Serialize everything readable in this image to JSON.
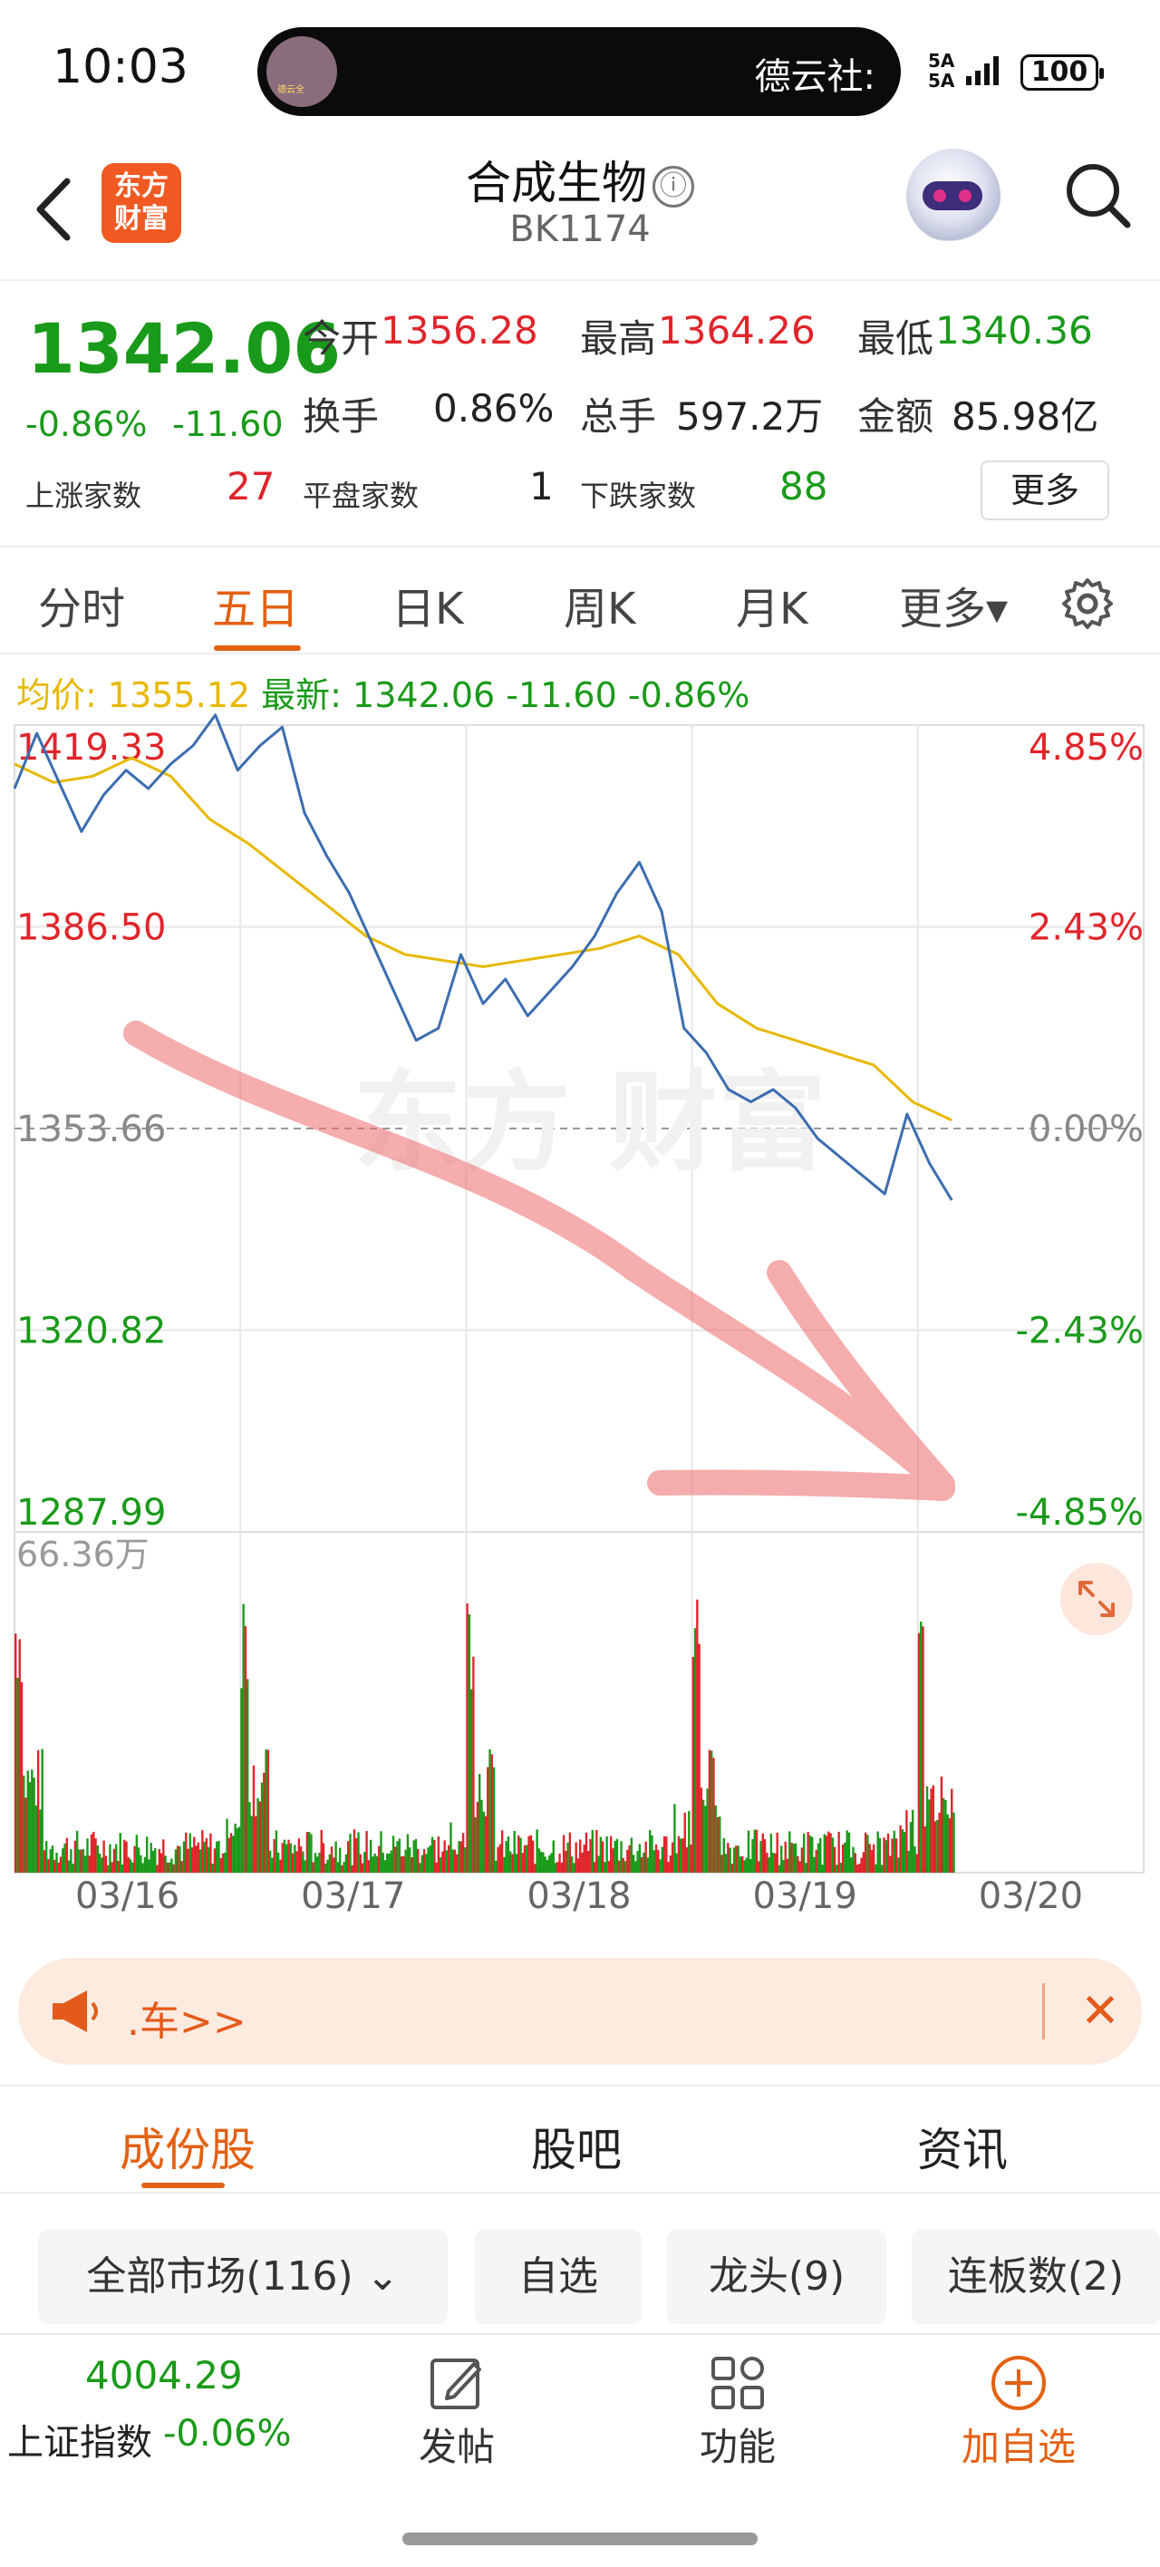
{
  "status_bar": {
    "time": "10:03",
    "island_text": "德云社:",
    "island_thumb_text": "德云全",
    "signal": "5A\n5A",
    "battery": "100"
  },
  "header": {
    "title": "合成生物",
    "info_icon": "ⓘ",
    "code": "BK1174",
    "logo_text": "东方\n财富"
  },
  "quote": {
    "price": "1342.06",
    "change_pct": "-0.86%",
    "change_val": "-11.60",
    "open_label": "今开",
    "open": "1356.28",
    "high_label": "最高",
    "high": "1364.26",
    "low_label": "最低",
    "low": "1340.36",
    "turnover_label": "换手",
    "turnover": "0.86%",
    "volume_label": "总手",
    "volume": "597.2万",
    "amount_label": "金额",
    "amount": "85.98亿",
    "up_label": "上涨家数",
    "up": "27",
    "flat_label": "平盘家数",
    "flat": "1",
    "down_label": "下跌家数",
    "down": "88",
    "more": "更多"
  },
  "tabs": [
    {
      "label": "分时",
      "active": false
    },
    {
      "label": "五日",
      "active": true
    },
    {
      "label": "日K",
      "active": false
    },
    {
      "label": "周K",
      "active": false
    },
    {
      "label": "月K",
      "active": false
    },
    {
      "label": "更多▾",
      "active": false
    }
  ],
  "legend": {
    "avg_label": "均价:",
    "avg": "1355.12",
    "last_label": "最新:",
    "last": "1342.06",
    "chg": "-11.60",
    "pct": "-0.86%"
  },
  "colors": {
    "up": "#e0252b",
    "down": "#1a9a1a",
    "accent": "#e36113",
    "price_line": "#3c6db0",
    "avg_line": "#e8b800"
  },
  "chart_data": {
    "type": "line",
    "x_labels": [
      "03/16",
      "03/17",
      "03/18",
      "03/19",
      "03/20"
    ],
    "y_ticks": [
      "1419.33",
      "1386.50",
      "1353.66",
      "1320.82",
      "1287.99"
    ],
    "pct_ticks": [
      "4.85%",
      "2.43%",
      "0.00%",
      "-2.43%",
      "-4.85%"
    ],
    "ylim": [
      1287.99,
      1419.33
    ],
    "base": 1353.66,
    "days": 5,
    "series": [
      {
        "values": [
          1409,
          1418,
          1410,
          1402,
          1408,
          1412,
          1409,
          1413,
          1416,
          1421,
          1412,
          1416,
          1419,
          1405,
          1398,
          1392,
          1384,
          1376,
          1368,
          1370,
          1382,
          1374,
          1378,
          1372,
          1376,
          1380,
          1385,
          1392,
          1397,
          1389,
          1370,
          1366,
          1360,
          1358,
          1360,
          1357,
          1352,
          1349,
          1346,
          1343,
          1356,
          1348,
          1342
        ]
      },
      {
        "values": [
          1413,
          1410,
          1411,
          1414,
          1411,
          1404,
          1400,
          1395,
          1390,
          1385,
          1382,
          1381,
          1380,
          1381,
          1382,
          1383,
          1385,
          1382,
          1374,
          1370,
          1368,
          1366,
          1364,
          1358,
          1355
        ]
      }
    ],
    "volume_max_label": "66.36万"
  },
  "banner": {
    "text": ".车>>",
    "close": "✕"
  },
  "subtabs": [
    {
      "label": "成份股",
      "active": true
    },
    {
      "label": "股吧",
      "active": false
    },
    {
      "label": "资讯",
      "active": false
    }
  ],
  "filters": [
    {
      "label": "全部市场(116) ⌄"
    },
    {
      "label": "自选"
    },
    {
      "label": "龙头(9)"
    },
    {
      "label": "连板数(2)"
    }
  ],
  "bottom_bar": {
    "index_value": "4004.29",
    "index_name": "上证指数",
    "index_change": "-0.06%",
    "post": "发帖",
    "func": "功能",
    "add": "加自选"
  }
}
